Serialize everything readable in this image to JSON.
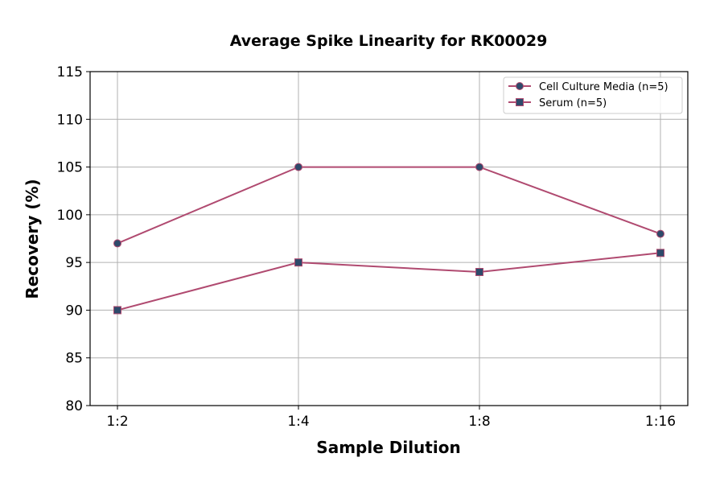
{
  "chart_data": {
    "type": "line",
    "title": "Average Spike Linearity for RK00029",
    "xlabel": "Sample Dilution",
    "ylabel": "Recovery (%)",
    "categories": [
      "1:2",
      "1:4",
      "1:8",
      "1:16"
    ],
    "ylim": [
      80,
      115
    ],
    "yticks": [
      80,
      85,
      90,
      95,
      100,
      105,
      110,
      115
    ],
    "grid": true,
    "legend_position": "top-right",
    "series": [
      {
        "name": "Cell Culture Media (n=5)",
        "values": [
          97,
          105,
          105,
          98
        ],
        "marker": "circle",
        "line_color": "#b04a70",
        "marker_color": "#2e4a6b"
      },
      {
        "name": "Serum (n=5)",
        "values": [
          90,
          95,
          94,
          96
        ],
        "marker": "square",
        "line_color": "#b04a70",
        "marker_color": "#2e4a6b"
      }
    ]
  }
}
